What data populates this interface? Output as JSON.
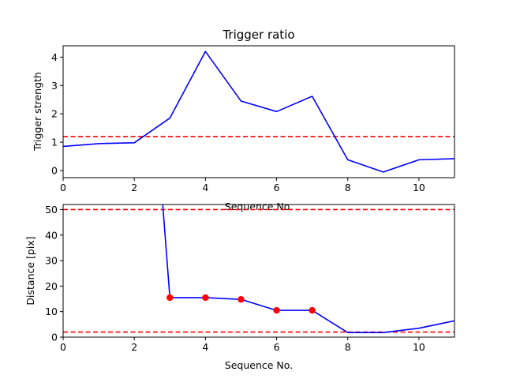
{
  "chart_data": [
    {
      "type": "line",
      "title": "Trigger ratio",
      "xlabel": "Sequence No.",
      "ylabel": "Trigger strength",
      "xlim": [
        0,
        11
      ],
      "ylim": [
        -0.25,
        4.4
      ],
      "xticks": [
        0,
        2,
        4,
        6,
        8,
        10
      ],
      "yticks": [
        0,
        1,
        2,
        3,
        4
      ],
      "series": [
        {
          "color": "#0000ff",
          "x": [
            0,
            1,
            2,
            3,
            4,
            5,
            6,
            7,
            8,
            9,
            10,
            11
          ],
          "y": [
            0.85,
            0.95,
            0.98,
            1.85,
            4.2,
            2.45,
            2.08,
            2.62,
            0.38,
            -0.05,
            0.38,
            0.42
          ]
        }
      ],
      "hlines": [
        {
          "y": 1.2,
          "color": "#ff0000",
          "style": "dashed"
        }
      ],
      "grid": false
    },
    {
      "type": "line",
      "title": "",
      "xlabel": "Sequence No.",
      "ylabel": "Distance [pix]",
      "xlim": [
        0,
        11
      ],
      "ylim": [
        0,
        52
      ],
      "xticks": [
        0,
        2,
        4,
        6,
        8,
        10
      ],
      "yticks": [
        0,
        10,
        20,
        30,
        40,
        50
      ],
      "series": [
        {
          "color": "#0000ff",
          "x": [
            2.8,
            3,
            4,
            5,
            6,
            7,
            8,
            9,
            10,
            11
          ],
          "y": [
            52,
            15.5,
            15.5,
            14.8,
            10.5,
            10.5,
            1.8,
            1.8,
            3.5,
            6.4
          ]
        }
      ],
      "markers": {
        "color": "#ff0000",
        "x": [
          3,
          4,
          5,
          6,
          7
        ],
        "y": [
          15.5,
          15.5,
          14.8,
          10.5,
          10.5
        ]
      },
      "hlines": [
        {
          "y": 50,
          "color": "#ff0000",
          "style": "dashed"
        },
        {
          "y": 2,
          "color": "#ff0000",
          "style": "dashed"
        }
      ],
      "grid": false
    }
  ]
}
